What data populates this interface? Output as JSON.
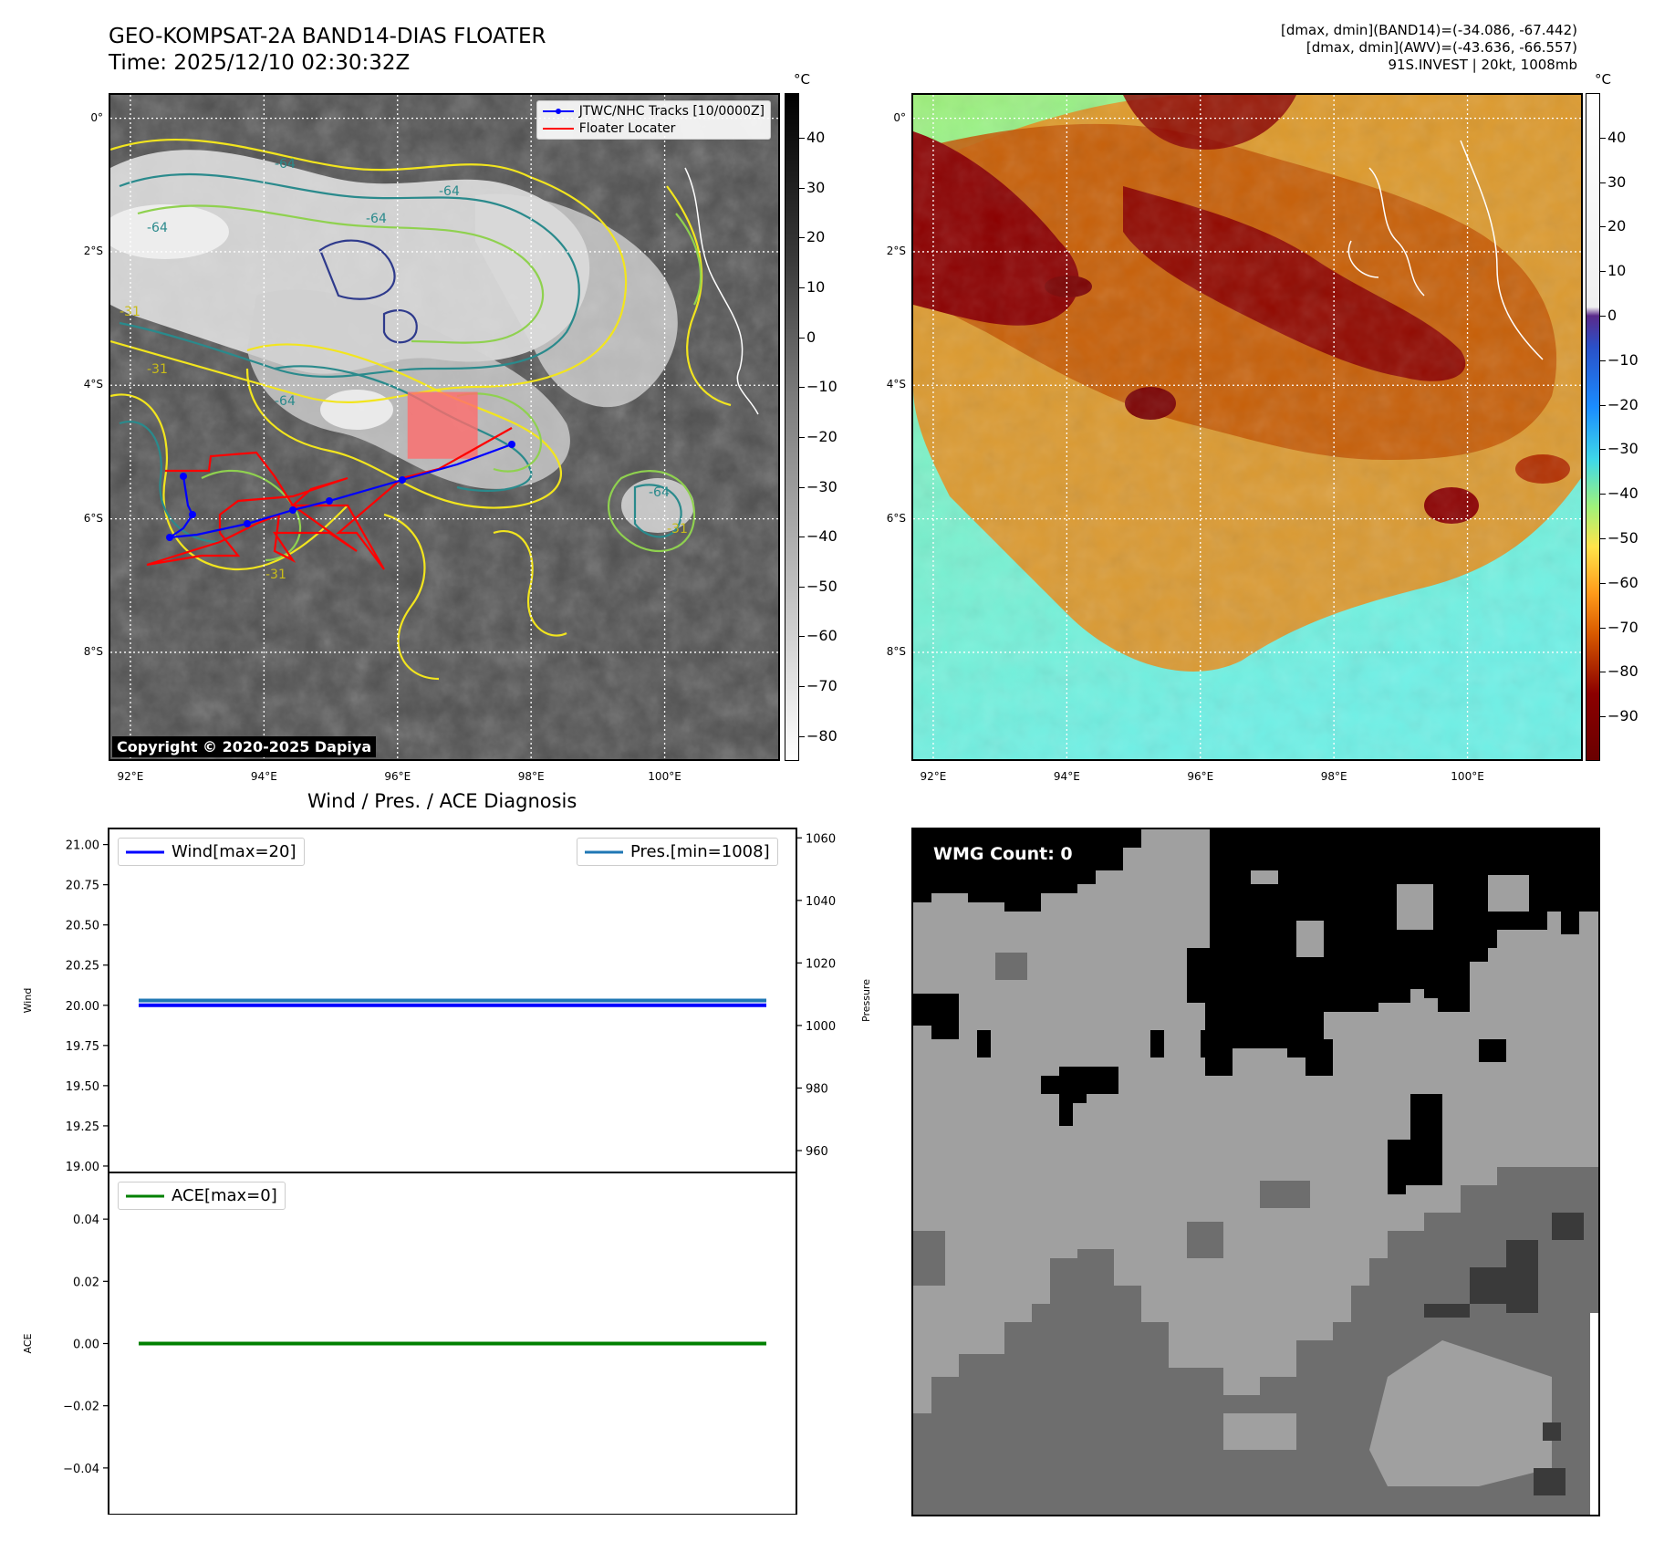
{
  "header": {
    "title_line1": "GEO-KOMPSAT-2A BAND14-DIAS FLOATER",
    "title_line2": "Time: 2025/12/10 02:30:32Z",
    "info_line1": "[dmax, dmin](BAND14)=(-34.086, -67.442)",
    "info_line2": "[dmax, dmin](AWV)=(-43.636, -66.557)",
    "info_line3": "91S.INVEST | 20kt, 1008mb"
  },
  "map": {
    "lat_labels": [
      "0°",
      "2°S",
      "4°S",
      "6°S",
      "8°S"
    ],
    "lat_values": [
      0,
      -2,
      -4,
      -6,
      -8
    ],
    "lon_labels": [
      "92°E",
      "94°E",
      "96°E",
      "98°E",
      "100°E"
    ],
    "lon_values": [
      92,
      94,
      96,
      98,
      100
    ],
    "extent": {
      "lon_min": 91.7,
      "lon_max": 101.7,
      "lat_min": -9.6,
      "lat_max": 0.35
    },
    "legend": {
      "track_label": "JTWC/NHC Tracks [10/0000Z]",
      "floater_label": "Floater Locater"
    },
    "copyright": "Copyright © 2020-2025 Dapiya",
    "contour_labels": [
      "-64",
      "-31"
    ],
    "colors": {
      "track": "#0000ff",
      "floater": "#ff0000",
      "contour_yellow": "#f2e51e",
      "contour_teal": "#2a8a8c",
      "contour_green": "#8fd14f",
      "contour_navy": "#2e3a8c"
    }
  },
  "colorbar_gray": {
    "unit": "°C",
    "ticks": [
      "40",
      "30",
      "20",
      "10",
      "0",
      "−10",
      "−20",
      "−30",
      "−40",
      "−50",
      "−60",
      "−70",
      "−80"
    ],
    "tick_values": [
      40,
      30,
      20,
      10,
      0,
      -10,
      -20,
      -30,
      -40,
      -50,
      -60,
      -70,
      -80
    ],
    "range": [
      -85,
      49
    ]
  },
  "colorbar_color": {
    "unit": "°C",
    "ticks": [
      "40",
      "30",
      "20",
      "10",
      "0",
      "−10",
      "−20",
      "−30",
      "−40",
      "−50",
      "−60",
      "−70",
      "−80",
      "−90"
    ],
    "tick_values": [
      40,
      30,
      20,
      10,
      0,
      -10,
      -20,
      -30,
      -40,
      -50,
      -60,
      -70,
      -80,
      -90
    ],
    "range": [
      -100,
      50
    ]
  },
  "chart_data": [
    {
      "type": "line",
      "title": "Wind / Pres. / ACE Diagnosis",
      "ylabel": "Wind",
      "ylabel_right": "Pressure",
      "ylim": [
        18.96,
        21.1
      ],
      "ylim_right": [
        953,
        1063
      ],
      "yticks": [
        "21.00",
        "20.75",
        "20.50",
        "20.25",
        "20.00",
        "19.75",
        "19.50",
        "19.25",
        "19.00"
      ],
      "ytick_values": [
        21.0,
        20.75,
        20.5,
        20.25,
        20.0,
        19.75,
        19.5,
        19.25,
        19.0
      ],
      "yticks_right": [
        "1060",
        "1040",
        "1020",
        "1000",
        "980",
        "960"
      ],
      "ytick_values_right": [
        1060,
        1040,
        1020,
        1000,
        980,
        960
      ],
      "series": [
        {
          "name": "Wind[max=20]",
          "values": [
            20,
            20
          ],
          "color": "#0000ff",
          "axis": "left"
        },
        {
          "name": "Pres.[min=1008]",
          "values": [
            1008,
            1008
          ],
          "color": "#1f77b4",
          "axis": "right"
        }
      ]
    },
    {
      "type": "line",
      "ylabel": "ACE",
      "ylim": [
        -0.055,
        0.055
      ],
      "yticks": [
        "0.04",
        "0.02",
        "0.00",
        "−0.02",
        "−0.04"
      ],
      "ytick_values": [
        0.04,
        0.02,
        0.0,
        -0.02,
        -0.04
      ],
      "series": [
        {
          "name": "ACE[max=0]",
          "values": [
            0,
            0
          ],
          "color": "#008000"
        }
      ]
    }
  ],
  "wmg": {
    "label": "WMG Count: 0"
  }
}
